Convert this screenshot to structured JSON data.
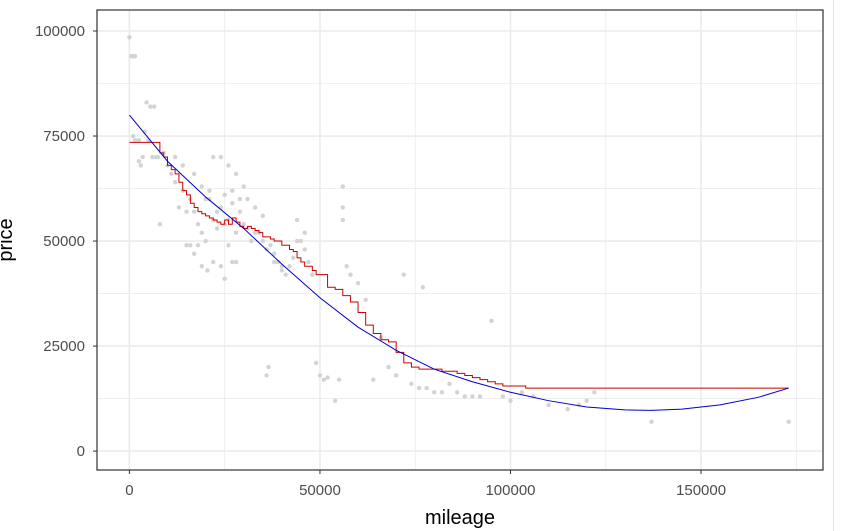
{
  "chart_data": {
    "type": "scatter",
    "title": "",
    "xlabel": "mileage",
    "ylabel": "price",
    "xlim": [
      -8500,
      182000
    ],
    "ylim": [
      -4500,
      105000
    ],
    "x_ticks": [
      0,
      50000,
      100000,
      150000
    ],
    "x_tick_labels": [
      "0",
      "50000",
      "100000",
      "150000"
    ],
    "y_ticks": [
      0,
      25000,
      50000,
      75000,
      100000
    ],
    "y_tick_labels": [
      "0",
      "25000",
      "50000",
      "75000",
      "100000"
    ],
    "grid": true,
    "legend": "none",
    "colors": {
      "points": "#d3d3d3",
      "step_line": "#cc0000",
      "smooth_line": "#0000cc",
      "grid": "#ebebeb",
      "border": "#333333"
    },
    "series": [
      {
        "kind": "points",
        "x": [
          0,
          500,
          1000,
          1500,
          2500,
          3000,
          3500,
          4500,
          5500,
          6500,
          4000,
          6000,
          8000,
          1000,
          1500,
          2500,
          5000,
          7000,
          7500,
          9000,
          10000,
          11000,
          12000,
          13000,
          14000,
          15000,
          16000,
          17000,
          18000,
          19000,
          20000,
          21000,
          22000,
          23000,
          24000,
          25000,
          26000,
          27000,
          28000,
          29000,
          30000,
          31000,
          32000,
          33000,
          34000,
          35000,
          36000,
          37000,
          38000,
          39000,
          40000,
          41000,
          42000,
          43000,
          44000,
          45000,
          46000,
          47000,
          48000,
          49000,
          50000,
          51000,
          52000,
          54000,
          55000,
          56000,
          57000,
          58000,
          60000,
          62000,
          64000,
          66000,
          68000,
          70000,
          72000,
          74000,
          76000,
          77000,
          78000,
          80000,
          82000,
          84000,
          86000,
          88000,
          90000,
          92000,
          95000,
          98000,
          100000,
          103000,
          106000,
          110000,
          115000,
          118000,
          120000,
          122000,
          137000,
          173000,
          12000,
          14000,
          17000,
          19000,
          21000,
          23000,
          25000,
          27000,
          29000,
          31000,
          33000,
          35000,
          22000,
          24000,
          26000,
          28000,
          30000,
          20000,
          18000,
          16000,
          22000,
          24000,
          26000,
          28000,
          36000,
          36500,
          38000,
          40000,
          56000,
          56000,
          44000,
          46000,
          15000,
          17000,
          19000,
          20500,
          27000,
          25000
        ],
        "y": [
          98500,
          94000,
          94000,
          94000,
          69000,
          68000,
          70000,
          83000,
          82000,
          82000,
          76000,
          70000,
          54000,
          75000,
          74000,
          74000,
          74000,
          70000,
          70000,
          71000,
          68000,
          66000,
          64000,
          58000,
          62000,
          57000,
          60000,
          57000,
          54000,
          52000,
          60000,
          62000,
          55000,
          53000,
          58000,
          54000,
          55000,
          59000,
          52000,
          57000,
          54000,
          53000,
          50000,
          52000,
          52000,
          50000,
          48000,
          49000,
          47000,
          45000,
          43000,
          42000,
          44000,
          46000,
          50000,
          50000,
          48000,
          45000,
          42000,
          21000,
          18000,
          17000,
          17500,
          12000,
          17000,
          55000,
          44000,
          42000,
          40000,
          36000,
          17000,
          27000,
          20000,
          18000,
          42000,
          16000,
          15000,
          39000,
          15000,
          14000,
          14000,
          16000,
          14000,
          13000,
          13000,
          13000,
          31000,
          13000,
          12000,
          14000,
          13000,
          11000,
          10000,
          11000,
          12000,
          14000,
          7000,
          7000,
          70000,
          68000,
          66000,
          63000,
          60000,
          57000,
          61000,
          62000,
          60000,
          60000,
          58000,
          56000,
          70000,
          70000,
          68000,
          66000,
          63000,
          50000,
          49000,
          49000,
          45000,
          44000,
          49000,
          45000,
          18000,
          20000,
          45000,
          44000,
          63000,
          58000,
          55000,
          52000,
          49000,
          47000,
          44000,
          43000,
          45000,
          41000
        ]
      },
      {
        "kind": "step_line",
        "x": [
          0,
          7000,
          8000,
          9000,
          10000,
          11000,
          12000,
          13000,
          14000,
          15000,
          16000,
          17000,
          18000,
          19000,
          20000,
          21000,
          22000,
          23000,
          24000,
          25000,
          26000,
          27000,
          28000,
          29000,
          30000,
          31000,
          32000,
          33000,
          34000,
          35000,
          36000,
          37000,
          38000,
          39000,
          40000,
          41000,
          42000,
          43000,
          44000,
          45000,
          46000,
          47000,
          48000,
          49000,
          50000,
          52000,
          54000,
          56000,
          58000,
          60000,
          62000,
          64000,
          66000,
          68000,
          70000,
          72000,
          74000,
          76000,
          78000,
          80000,
          82000,
          84000,
          86000,
          88000,
          90000,
          92000,
          94000,
          96000,
          98000,
          100000,
          104000,
          106000,
          110000,
          130000,
          150000,
          173000
        ],
        "y": [
          73500,
          73500,
          71000,
          70000,
          68000,
          67000,
          66000,
          64000,
          62000,
          61000,
          59000,
          58000,
          57000,
          56500,
          56000,
          55500,
          55000,
          54500,
          54000,
          55000,
          54000,
          55500,
          54500,
          53500,
          53000,
          53500,
          53000,
          52500,
          52000,
          51000,
          51000,
          50500,
          50000,
          50000,
          49000,
          49000,
          48000,
          47500,
          46000,
          45000,
          44000,
          44000,
          43000,
          42000,
          42000,
          39000,
          38500,
          37000,
          35500,
          33000,
          30000,
          28000,
          26500,
          26000,
          23500,
          21000,
          20000,
          19500,
          19500,
          19500,
          19000,
          19000,
          18500,
          18000,
          17500,
          17000,
          16500,
          16000,
          15500,
          15500,
          15000,
          15000,
          15000,
          15000,
          15000,
          15000
        ]
      },
      {
        "kind": "smooth_line",
        "x": [
          0,
          10000,
          20000,
          30000,
          40000,
          50000,
          60000,
          70000,
          80000,
          90000,
          100000,
          110000,
          120000,
          130000,
          137000,
          145000,
          155000,
          165000,
          173000
        ],
        "y": [
          80000,
          69000,
          60500,
          53000,
          44500,
          36500,
          29500,
          24000,
          19500,
          16500,
          14000,
          12000,
          10500,
          9800,
          9700,
          10000,
          11000,
          12800,
          15000
        ]
      }
    ]
  }
}
